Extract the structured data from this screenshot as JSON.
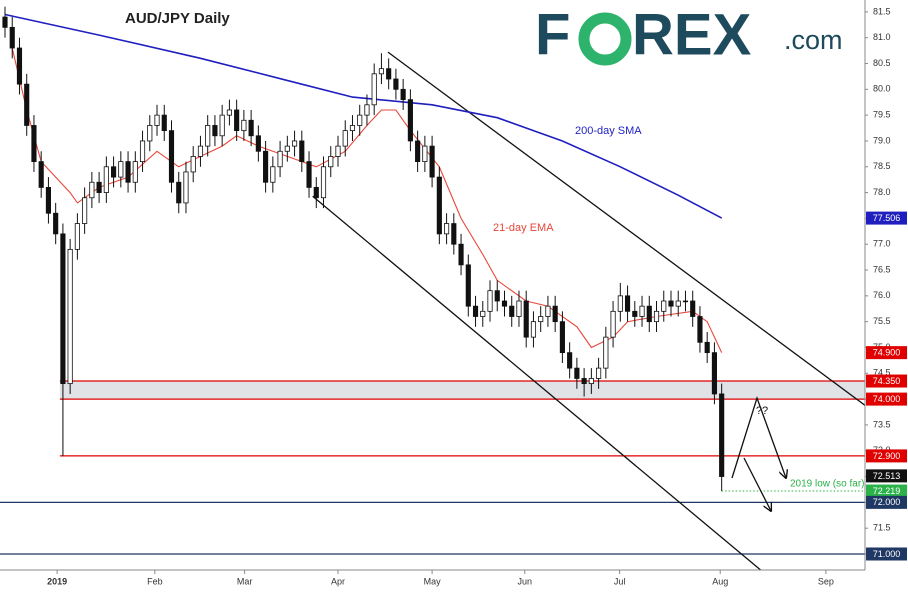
{
  "chart_data": {
    "type": "candlestick",
    "title": "AUD/JPY Daily",
    "logo": {
      "left": "F",
      "right": "REX",
      "suffix": ".com"
    },
    "ohlc": {
      "open": [
        81.4,
        81.2,
        80.8,
        80.1,
        79.3,
        78.6,
        78.1,
        77.6,
        77.2,
        74.3,
        76.9,
        77.4,
        77.9,
        78.2,
        78.0,
        78.5,
        78.3,
        78.6,
        78.2,
        78.6,
        79.0,
        79.3,
        79.5,
        79.2,
        78.2,
        77.8,
        78.4,
        78.7,
        78.9,
        79.3,
        79.1,
        79.5,
        79.6,
        79.2,
        79.4,
        79.1,
        78.8,
        78.2,
        78.5,
        78.8,
        78.9,
        79.0,
        78.6,
        78.1,
        77.9,
        78.5,
        78.7,
        78.9,
        79.2,
        79.3,
        79.5,
        79.7,
        80.3,
        80.4,
        80.2,
        80.0,
        79.8,
        79.0,
        78.6,
        78.9,
        78.3,
        77.2,
        77.4,
        77.0,
        76.6,
        75.8,
        75.6,
        75.7,
        76.1,
        75.9,
        75.8,
        75.6,
        75.9,
        75.2,
        75.5,
        75.6,
        75.8,
        75.5,
        74.9,
        74.6,
        74.4,
        74.3,
        74.4,
        74.6,
        75.2,
        75.7,
        76.0,
        75.7,
        75.6,
        75.8,
        75.5,
        75.7,
        75.9,
        75.8,
        75.9,
        75.9,
        75.6,
        75.1,
        74.9,
        74.1
      ],
      "high": [
        81.6,
        81.4,
        81.0,
        80.3,
        79.5,
        78.8,
        78.3,
        77.8,
        77.4,
        77.1,
        77.6,
        78.1,
        78.4,
        78.4,
        78.7,
        78.7,
        78.8,
        78.8,
        78.8,
        79.2,
        79.5,
        79.7,
        79.7,
        79.4,
        78.4,
        78.6,
        78.9,
        79.1,
        79.5,
        79.5,
        79.7,
        79.8,
        79.8,
        79.6,
        79.6,
        79.3,
        79.0,
        78.7,
        79.0,
        79.1,
        79.2,
        79.2,
        78.8,
        78.3,
        78.7,
        78.9,
        79.1,
        79.4,
        79.5,
        79.7,
        79.9,
        80.5,
        80.7,
        80.6,
        80.4,
        80.2,
        80.0,
        79.2,
        79.1,
        79.1,
        78.5,
        77.6,
        77.6,
        77.2,
        76.8,
        76.0,
        75.9,
        76.3,
        76.3,
        76.1,
        76.0,
        76.1,
        76.1,
        75.7,
        75.8,
        76.0,
        76.0,
        75.7,
        75.1,
        74.8,
        74.6,
        74.6,
        74.8,
        75.4,
        75.9,
        76.25,
        76.2,
        75.9,
        76.0,
        76.0,
        75.9,
        76.1,
        76.1,
        76.1,
        76.1,
        76.1,
        75.8,
        75.3,
        75.1,
        74.3
      ],
      "low": [
        81.0,
        80.6,
        79.9,
        79.1,
        78.4,
        77.9,
        77.4,
        77.0,
        72.9,
        74.1,
        76.7,
        77.2,
        77.7,
        77.8,
        77.8,
        78.1,
        78.1,
        78.0,
        78.0,
        78.4,
        78.8,
        79.1,
        79.0,
        78.0,
        77.6,
        77.6,
        78.2,
        78.5,
        78.7,
        78.9,
        78.9,
        79.3,
        79.0,
        79.0,
        78.9,
        78.6,
        78.0,
        78.0,
        78.3,
        78.6,
        78.7,
        78.4,
        77.9,
        77.7,
        77.7,
        78.3,
        78.5,
        78.7,
        79.0,
        79.1,
        79.3,
        79.5,
        80.1,
        80.0,
        79.8,
        79.6,
        78.8,
        78.4,
        78.4,
        78.1,
        77.0,
        77.0,
        76.8,
        76.4,
        75.6,
        75.4,
        75.4,
        75.5,
        75.7,
        75.6,
        75.4,
        75.4,
        75.0,
        75.0,
        75.3,
        75.4,
        75.3,
        74.7,
        74.4,
        74.2,
        74.05,
        74.1,
        74.2,
        74.4,
        75.0,
        75.5,
        75.5,
        75.4,
        75.4,
        75.3,
        75.3,
        75.5,
        75.6,
        75.6,
        75.7,
        75.4,
        74.9,
        74.7,
        73.9,
        72.22
      ],
      "close": [
        81.2,
        80.8,
        80.1,
        79.3,
        78.6,
        78.1,
        77.6,
        77.2,
        74.3,
        76.9,
        77.4,
        77.9,
        78.2,
        78.0,
        78.5,
        78.3,
        78.6,
        78.2,
        78.6,
        79.0,
        79.3,
        79.5,
        79.2,
        78.2,
        77.8,
        78.4,
        78.7,
        78.9,
        79.3,
        79.1,
        79.5,
        79.6,
        79.2,
        79.4,
        79.1,
        78.8,
        78.2,
        78.5,
        78.8,
        78.9,
        79.0,
        78.6,
        78.1,
        77.9,
        78.5,
        78.7,
        78.9,
        79.2,
        79.3,
        79.5,
        79.7,
        80.3,
        80.4,
        80.2,
        80.0,
        79.8,
        79.0,
        78.6,
        78.9,
        78.3,
        77.2,
        77.4,
        77.0,
        76.6,
        75.8,
        75.6,
        75.7,
        76.1,
        75.9,
        75.8,
        75.6,
        75.9,
        75.2,
        75.5,
        75.6,
        75.8,
        75.5,
        74.9,
        74.6,
        74.4,
        74.3,
        74.4,
        74.6,
        75.2,
        75.7,
        76.0,
        75.7,
        75.6,
        75.8,
        75.5,
        75.7,
        75.9,
        75.8,
        75.9,
        75.9,
        75.6,
        75.1,
        74.9,
        74.1,
        72.5
      ]
    },
    "series": [
      {
        "name": "200-day SMA",
        "color": "#1f1fc0",
        "x": [
          0,
          13,
          27,
          41,
          48,
          59,
          68,
          77,
          85,
          93,
          99
        ],
        "values": [
          81.45,
          81.05,
          80.6,
          80.1,
          79.85,
          79.7,
          79.45,
          79.0,
          78.5,
          77.95,
          77.506
        ]
      },
      {
        "name": "21-day EMA",
        "color": "#e8473a",
        "x": [
          1,
          3,
          5,
          9,
          10,
          13,
          17,
          21,
          24,
          27,
          30,
          32,
          35,
          39,
          43,
          47,
          50,
          52,
          54,
          56,
          60,
          63,
          66,
          68,
          72,
          75,
          79,
          81,
          84,
          86,
          90,
          95,
          97,
          99
        ],
        "values": [
          80.8,
          79.6,
          78.6,
          78.0,
          77.8,
          78.1,
          78.3,
          78.8,
          78.5,
          78.7,
          78.9,
          79.1,
          78.9,
          78.7,
          78.5,
          78.8,
          79.3,
          79.6,
          79.6,
          79.2,
          78.5,
          77.5,
          76.8,
          76.3,
          75.9,
          75.8,
          75.4,
          75.0,
          75.2,
          75.5,
          75.6,
          75.7,
          75.5,
          74.9
        ]
      }
    ],
    "levels": [
      {
        "value": 74.9,
        "label": "74.900",
        "color": "#e00000",
        "line": "none"
      },
      {
        "value": 74.35,
        "label": "74.350",
        "color": "#e00000",
        "line": "partial",
        "shade": true
      },
      {
        "value": 74,
        "label": "74.000",
        "color": "#e00000",
        "line": "partial",
        "shade": true
      },
      {
        "value": 72.9,
        "label": "72.900",
        "color": "#e00000",
        "line": "partial"
      },
      {
        "value": 72.513,
        "label": "72.513",
        "color": "#111111",
        "line": "none"
      },
      {
        "value": 72.219,
        "label": "72.219",
        "color": "#2bb34a",
        "line": "dotted"
      },
      {
        "value": 72,
        "label": "72.000",
        "color": "#1f3864",
        "line": "full"
      },
      {
        "value": 71,
        "label": "71.000",
        "color": "#1f3864",
        "line": "full"
      },
      {
        "value": 77.506,
        "label": "77.506",
        "color": "#1f1fc0",
        "line": "none"
      }
    ],
    "low_note": "2019 low (so far)",
    "question": "??",
    "trendlines": [
      {
        "x": [
          52.9,
          118.8
        ],
        "y": [
          80.72,
          73.88
        ]
      },
      {
        "x": [
          42.5,
          108.4
        ],
        "y": [
          77.93,
          70.22
        ]
      }
    ],
    "xlim": [
      -0.69,
      118.8
    ],
    "xticks": [
      {
        "value": 7.2,
        "label": "2019"
      },
      {
        "value": 20.7,
        "label": "Feb"
      },
      {
        "value": 33.1,
        "label": "Mar"
      },
      {
        "value": 46,
        "label": "Apr"
      },
      {
        "value": 59,
        "label": "May"
      },
      {
        "value": 71.8,
        "label": "Jun"
      },
      {
        "value": 84.9,
        "label": "Jul"
      },
      {
        "value": 98.8,
        "label": "Aug"
      },
      {
        "value": 113.4,
        "label": "Sep"
      }
    ],
    "ylim": [
      70.69,
      81.73
    ],
    "yticks": [
      {
        "value": 71,
        "label": "71.0"
      },
      71.5,
      {
        "value": 72,
        "label": "72.0"
      },
      72.5,
      {
        "value": 73,
        "label": "73.0"
      },
      73.5,
      {
        "value": 74,
        "label": "74.0"
      },
      74.5,
      {
        "value": 75,
        "label": "75.0"
      },
      75.5,
      {
        "value": 76,
        "label": "76.0"
      },
      76.5,
      {
        "value": 77,
        "label": "77.0"
      },
      77.5,
      {
        "value": 78,
        "label": "78.0"
      },
      78.5,
      {
        "value": 79,
        "label": "79.0"
      },
      79.5,
      {
        "value": 80,
        "label": "80.0"
      },
      80.5,
      {
        "value": 81,
        "label": "81.0"
      },
      81.5
    ],
    "up_color": "#ffffff",
    "down_color": "#111111"
  }
}
